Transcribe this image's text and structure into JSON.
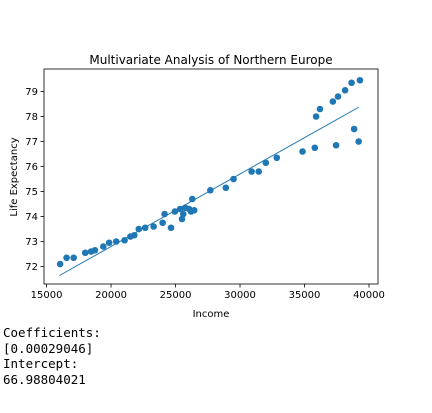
{
  "chart_data": {
    "type": "scatter",
    "title": "Multivariate Analysis of Northern Europe",
    "xlabel": "Income",
    "ylabel": "Life Expectancy",
    "xlim": [
      14800,
      40700
    ],
    "ylim": [
      71.3,
      79.9
    ],
    "xticks": [
      15000,
      20000,
      25000,
      30000,
      35000,
      40000
    ],
    "yticks": [
      72,
      73,
      74,
      75,
      76,
      77,
      78,
      79
    ],
    "point_color": "#1f77b4",
    "line_color": "#1f77b4",
    "grid": false,
    "points": [
      [
        16050,
        72.1
      ],
      [
        16550,
        72.35
      ],
      [
        17100,
        72.35
      ],
      [
        18000,
        72.55
      ],
      [
        18450,
        72.6
      ],
      [
        18750,
        72.65
      ],
      [
        19400,
        72.8
      ],
      [
        19850,
        72.95
      ],
      [
        20400,
        73.0
      ],
      [
        21050,
        73.05
      ],
      [
        21500,
        73.2
      ],
      [
        21800,
        73.25
      ],
      [
        22150,
        73.5
      ],
      [
        22650,
        73.55
      ],
      [
        23300,
        73.6
      ],
      [
        24000,
        73.75
      ],
      [
        24150,
        74.1
      ],
      [
        24650,
        73.55
      ],
      [
        24950,
        74.2
      ],
      [
        25350,
        74.3
      ],
      [
        25500,
        73.9
      ],
      [
        25600,
        74.1
      ],
      [
        25750,
        74.35
      ],
      [
        26050,
        74.3
      ],
      [
        26200,
        74.2
      ],
      [
        26300,
        74.7
      ],
      [
        26450,
        74.25
      ],
      [
        27700,
        75.05
      ],
      [
        28900,
        75.15
      ],
      [
        29500,
        75.5
      ],
      [
        30900,
        75.8
      ],
      [
        31450,
        75.8
      ],
      [
        32000,
        76.15
      ],
      [
        32850,
        76.35
      ],
      [
        34850,
        76.6
      ],
      [
        35800,
        76.75
      ],
      [
        35900,
        78.0
      ],
      [
        36200,
        78.3
      ],
      [
        37200,
        78.6
      ],
      [
        37450,
        76.85
      ],
      [
        37600,
        78.8
      ],
      [
        38150,
        79.05
      ],
      [
        38650,
        79.35
      ],
      [
        38850,
        77.5
      ],
      [
        39200,
        77.0
      ],
      [
        39300,
        79.45
      ]
    ],
    "regression_line": {
      "x": [
        16000,
        39200
      ],
      "y": [
        71.64,
        78.37
      ]
    }
  },
  "output": {
    "coef_label": "Coefficients:",
    "coef_value": "[0.00029046]",
    "intercept_label": "Intercept:",
    "intercept_value": "66.98804021"
  }
}
